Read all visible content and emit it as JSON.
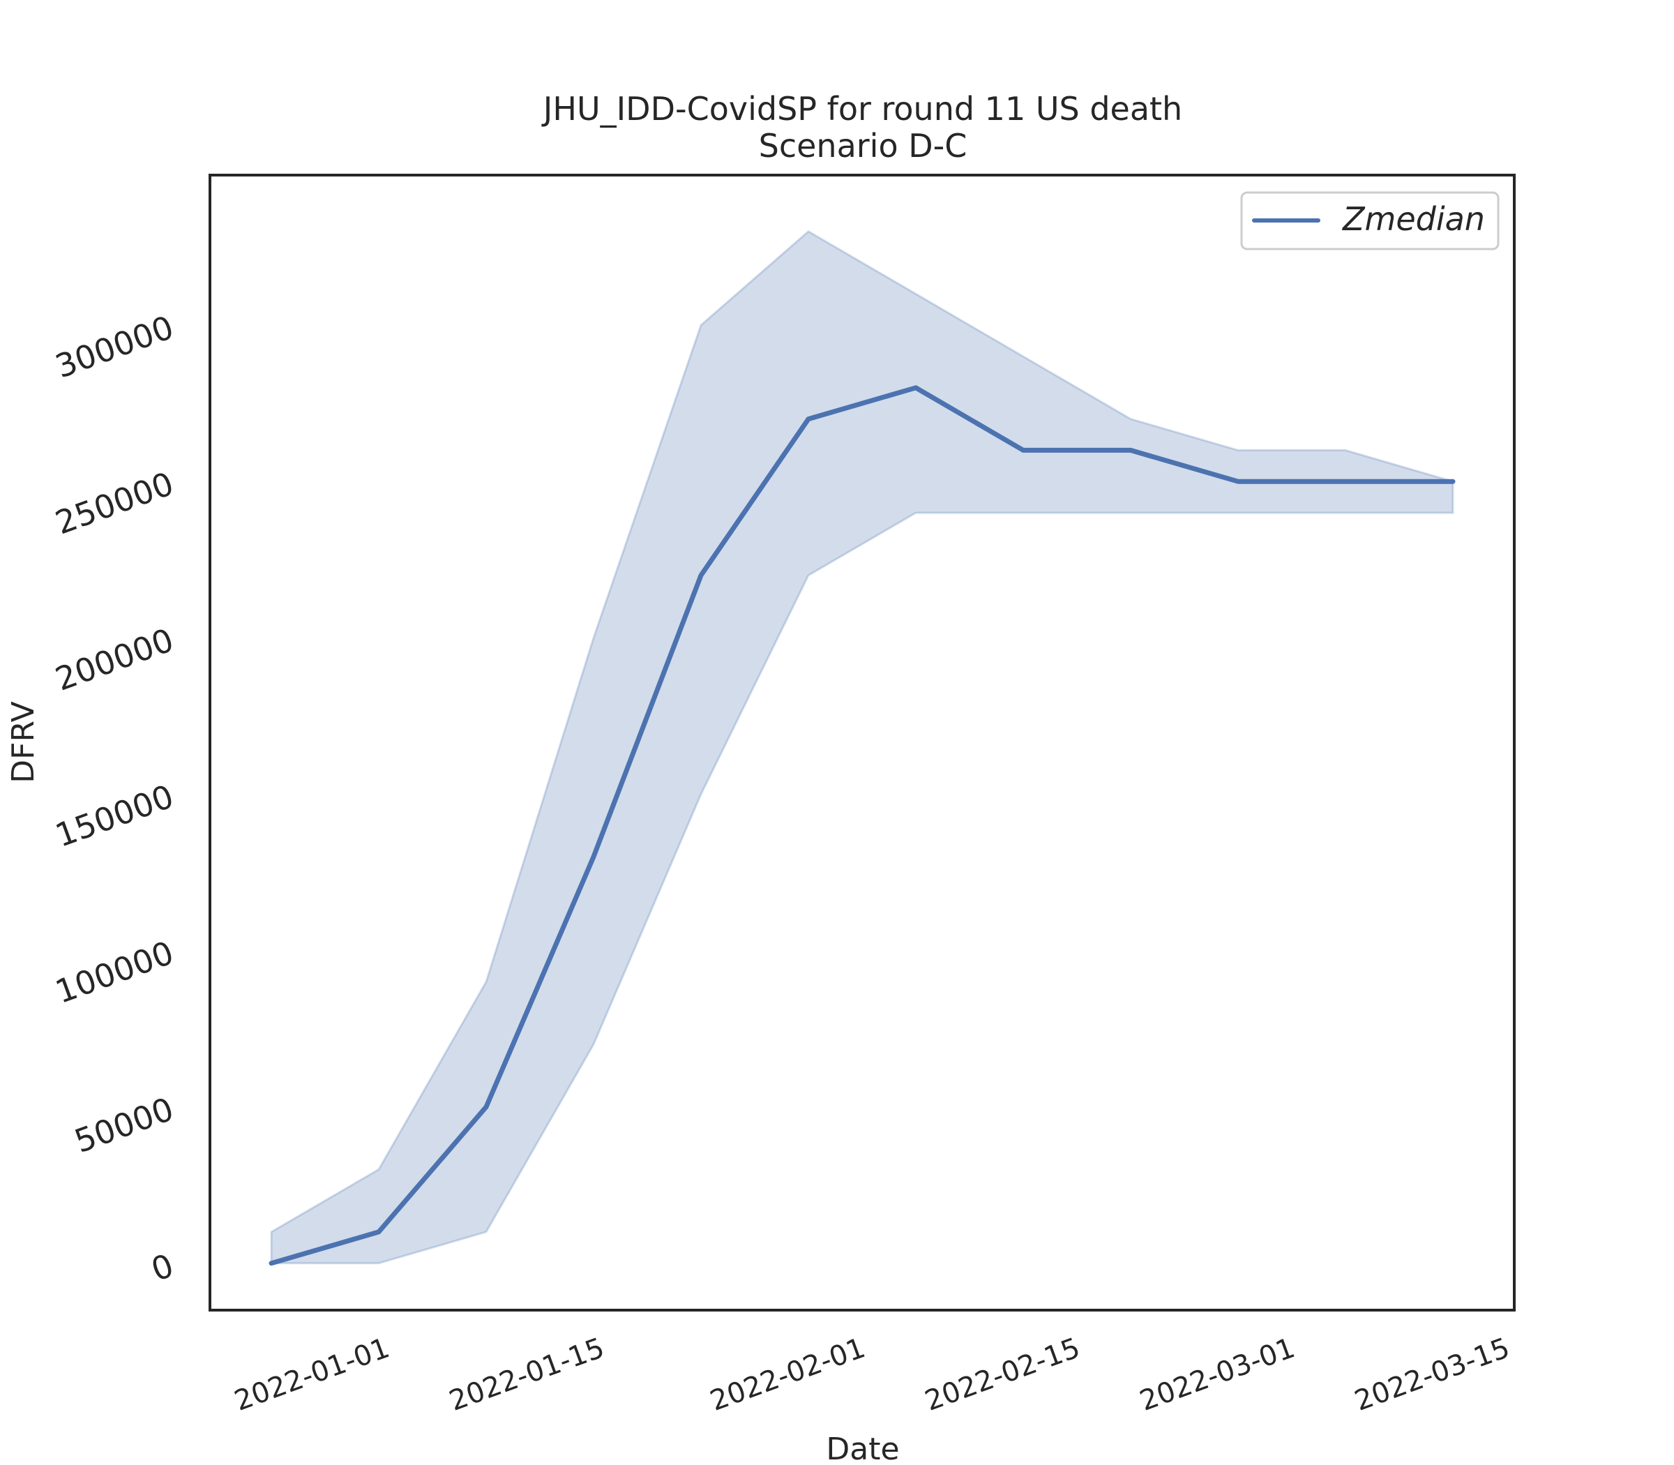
{
  "chart_data": {
    "type": "line",
    "title": "JHU_IDD-CovidSP for round 11 US death",
    "subtitle": "Scenario D-C",
    "xlabel": "Date",
    "ylabel": "DFRV",
    "x_tick_labels": [
      "2022-01-01",
      "2022-01-15",
      "2022-02-01",
      "2022-02-15",
      "2022-03-01",
      "2022-03-15"
    ],
    "y_tick_labels": [
      "0",
      "50000",
      "100000",
      "150000",
      "200000",
      "250000",
      "300000"
    ],
    "ylim": [
      -15000,
      348000
    ],
    "xlim": [
      "2021-12-21",
      "2022-03-16"
    ],
    "grid": false,
    "legend": {
      "position": "top-right"
    },
    "series": [
      {
        "name": "Zmedian",
        "color": "#4c72b0",
        "x": [
          "2021-12-25",
          "2022-01-01",
          "2022-01-08",
          "2022-01-15",
          "2022-01-22",
          "2022-01-29",
          "2022-02-05",
          "2022-02-12",
          "2022-02-19",
          "2022-02-26",
          "2022-03-05",
          "2022-03-12"
        ],
        "values": [
          0,
          10000,
          50000,
          130000,
          220000,
          270000,
          280000,
          260000,
          260000,
          250000,
          250000,
          250000
        ],
        "band_upper": [
          10000,
          30000,
          90000,
          200000,
          300000,
          330000,
          310000,
          290000,
          270000,
          260000,
          260000,
          250000
        ],
        "band_lower": [
          0,
          0,
          10000,
          70000,
          150000,
          220000,
          240000,
          240000,
          240000,
          240000,
          240000,
          240000
        ]
      }
    ]
  }
}
